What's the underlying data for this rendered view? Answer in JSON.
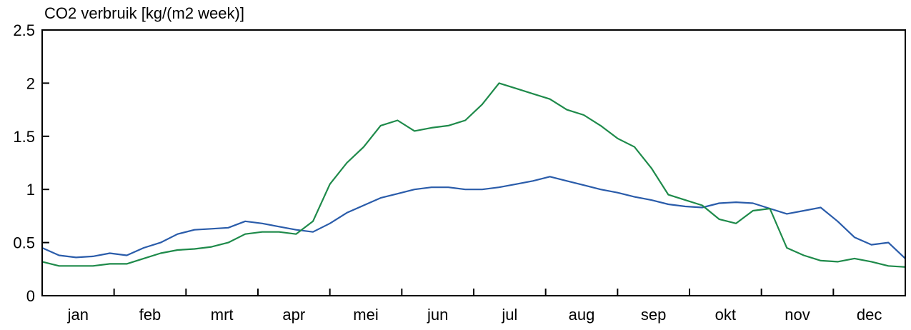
{
  "chart_data": {
    "type": "line",
    "title": "CO2 verbruik [kg/(m2 week)]",
    "xlabel": "",
    "ylabel": "",
    "ylim": [
      0,
      2.5
    ],
    "yticks": [
      0,
      0.5,
      1,
      1.5,
      2,
      2.5
    ],
    "ytick_labels": [
      "0",
      "0.5",
      "1",
      "1.5",
      "2",
      "2.5"
    ],
    "xlim": [
      1,
      52
    ],
    "months": [
      "jan",
      "feb",
      "mrt",
      "apr",
      "mei",
      "jun",
      "jul",
      "aug",
      "sep",
      "okt",
      "nov",
      "dec"
    ],
    "grid": false,
    "legend": "none",
    "series": [
      {
        "color": "#2a5caa",
        "x": [
          1,
          2,
          3,
          4,
          5,
          6,
          7,
          8,
          9,
          10,
          11,
          12,
          13,
          14,
          15,
          16,
          17,
          18,
          19,
          20,
          21,
          22,
          23,
          24,
          25,
          26,
          27,
          28,
          29,
          30,
          31,
          32,
          33,
          34,
          35,
          36,
          37,
          38,
          39,
          40,
          41,
          42,
          43,
          44,
          45,
          46,
          47,
          48,
          49,
          50,
          51,
          52
        ],
        "values": [
          0.45,
          0.38,
          0.36,
          0.37,
          0.4,
          0.38,
          0.45,
          0.5,
          0.58,
          0.62,
          0.63,
          0.64,
          0.7,
          0.68,
          0.65,
          0.62,
          0.6,
          0.68,
          0.78,
          0.85,
          0.92,
          0.96,
          1.0,
          1.02,
          1.02,
          1.0,
          1.0,
          1.02,
          1.05,
          1.08,
          1.12,
          1.08,
          1.04,
          1.0,
          0.97,
          0.93,
          0.9,
          0.86,
          0.84,
          0.83,
          0.87,
          0.88,
          0.87,
          0.82,
          0.77,
          0.8,
          0.83,
          0.7,
          0.55,
          0.48,
          0.5,
          0.35
        ]
      },
      {
        "color": "#1e8a4a",
        "x": [
          1,
          2,
          3,
          4,
          5,
          6,
          7,
          8,
          9,
          10,
          11,
          12,
          13,
          14,
          15,
          16,
          17,
          18,
          19,
          20,
          21,
          22,
          23,
          24,
          25,
          26,
          27,
          28,
          29,
          30,
          31,
          32,
          33,
          34,
          35,
          36,
          37,
          38,
          39,
          40,
          41,
          42,
          43,
          44,
          45,
          46,
          47,
          48,
          49,
          50,
          51,
          52
        ],
        "values": [
          0.32,
          0.28,
          0.28,
          0.28,
          0.3,
          0.3,
          0.35,
          0.4,
          0.43,
          0.44,
          0.46,
          0.5,
          0.58,
          0.6,
          0.6,
          0.58,
          0.7,
          1.05,
          1.25,
          1.4,
          1.6,
          1.65,
          1.55,
          1.58,
          1.6,
          1.65,
          1.8,
          2.0,
          1.95,
          1.9,
          1.85,
          1.75,
          1.7,
          1.6,
          1.48,
          1.4,
          1.2,
          0.95,
          0.9,
          0.85,
          0.72,
          0.68,
          0.8,
          0.82,
          0.45,
          0.38,
          0.33,
          0.32,
          0.35,
          0.32,
          0.28,
          0.27
        ]
      }
    ]
  }
}
